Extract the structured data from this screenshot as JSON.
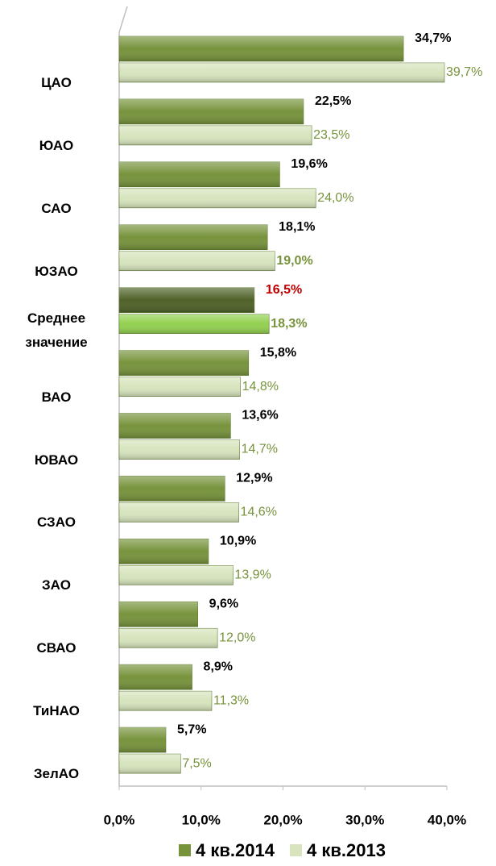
{
  "chart_data": {
    "type": "hbar",
    "categories": [
      "ЦАО",
      "ЮАО",
      "САО",
      "ЮЗАО",
      "Среднее значение",
      "ВАО",
      "ЮВАО",
      "СЗАО",
      "ЗАО",
      "СВАО",
      "ТиНАО",
      "ЗелАО"
    ],
    "series": [
      {
        "name": "4 кв.2014",
        "color": "#77933c",
        "colors": [
          "#77933c",
          "#77933c",
          "#77933c",
          "#77933c",
          "#4f6228",
          "#77933c",
          "#77933c",
          "#77933c",
          "#77933c",
          "#77933c",
          "#77933c",
          "#77933c"
        ],
        "values": [
          34.7,
          22.5,
          19.6,
          18.1,
          16.5,
          15.8,
          13.6,
          12.9,
          10.9,
          9.6,
          8.9,
          5.7
        ],
        "value_labels": [
          "34,7%",
          "22,5%",
          "19,6%",
          "18,1%",
          "16,5%",
          "15,8%",
          "13,6%",
          "12,9%",
          "10,9%",
          "9,6%",
          "8,9%",
          "5,7%"
        ],
        "label_colors": [
          "#000000",
          "#000000",
          "#000000",
          "#000000",
          "#c00000",
          "#000000",
          "#000000",
          "#000000",
          "#000000",
          "#000000",
          "#000000",
          "#000000"
        ],
        "bold_labels": [
          0,
          1,
          2,
          3,
          4,
          5,
          6,
          7,
          8,
          9,
          10,
          11
        ]
      },
      {
        "name": "4 кв.2013",
        "color": "#d7e4bd",
        "colors": [
          "#d7e4bd",
          "#d7e4bd",
          "#d7e4bd",
          "#d7e4bd",
          "#92d050",
          "#d7e4bd",
          "#d7e4bd",
          "#d7e4bd",
          "#d7e4bd",
          "#d7e4bd",
          "#d7e4bd",
          "#d7e4bd"
        ],
        "values": [
          39.7,
          23.5,
          24.0,
          19.0,
          18.3,
          14.8,
          14.7,
          14.6,
          13.9,
          12.0,
          11.3,
          7.5
        ],
        "value_labels": [
          "39,7%",
          "23,5%",
          "24,0%",
          "19,0%",
          "18,3%",
          "14,8%",
          "14,7%",
          "14,6%",
          "13,9%",
          "12,0%",
          "11,3%",
          "7,5%"
        ],
        "label_colors": [
          "#77933c",
          "#77933c",
          "#77933c",
          "#77933c",
          "#77933c",
          "#77933c",
          "#77933c",
          "#77933c",
          "#77933c",
          "#77933c",
          "#77933c",
          "#77933c"
        ],
        "bold_labels": [
          3,
          4
        ]
      }
    ],
    "xlim": [
      0,
      40
    ],
    "xticks": [
      {
        "value": 0,
        "label": "0,0%"
      },
      {
        "value": 10,
        "label": "10,0%"
      },
      {
        "value": 20,
        "label": "20,0%"
      },
      {
        "value": 30,
        "label": "30,0%"
      },
      {
        "value": 40,
        "label": "40,0%"
      }
    ],
    "legend": "bottom"
  }
}
